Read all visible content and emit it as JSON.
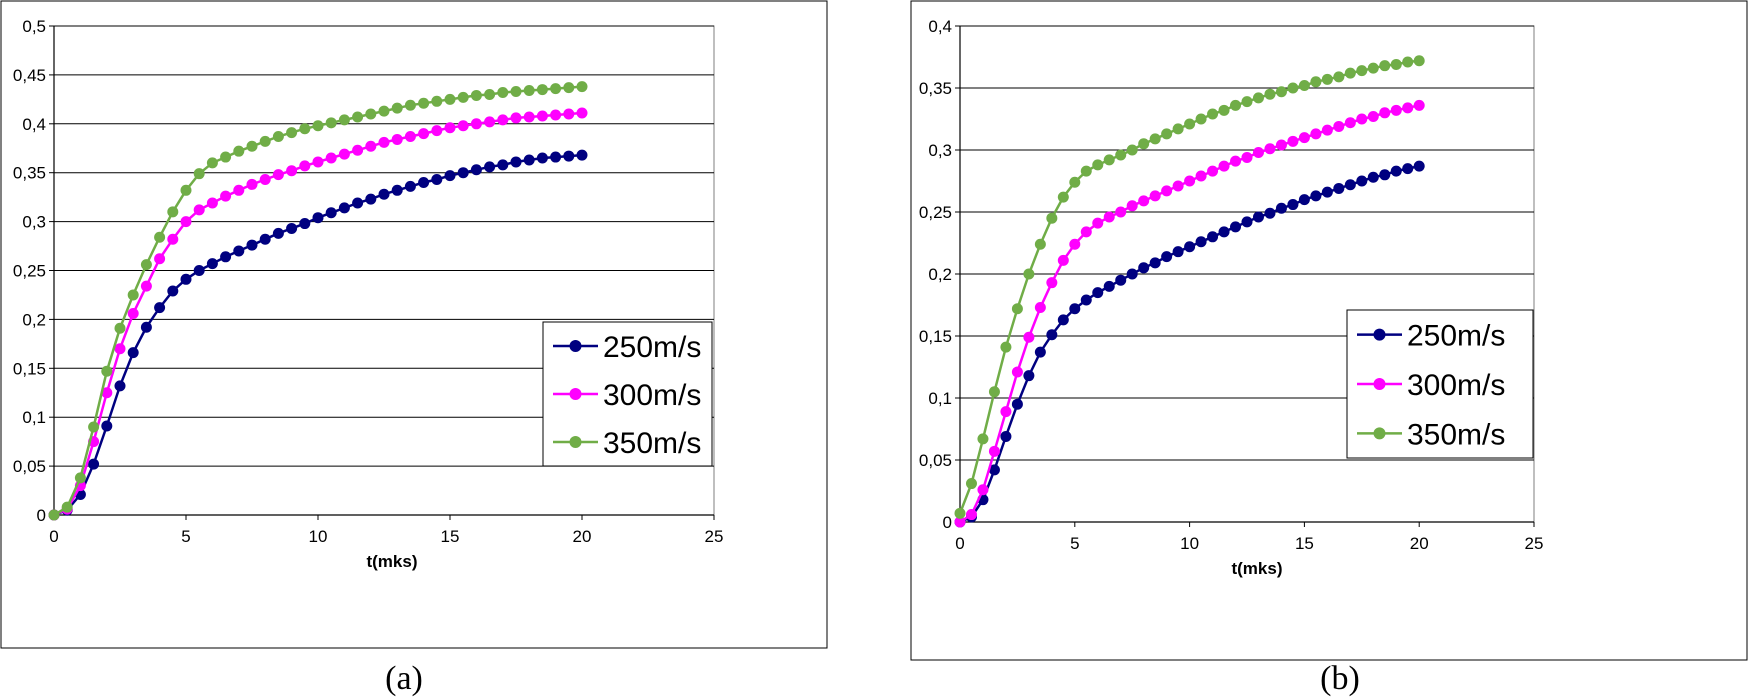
{
  "chart_data": [
    {
      "type": "line",
      "caption": "(a)",
      "title": "",
      "xlabel": "t(mks)",
      "ylabel": "",
      "xlim": [
        0,
        25
      ],
      "ylim": [
        0,
        0.5
      ],
      "x_ticks": [
        "0",
        "5",
        "10",
        "15",
        "20",
        "25"
      ],
      "y_ticks": [
        "0",
        "0,05",
        "0,1",
        "0,15",
        "0,2",
        "0,25",
        "0,3",
        "0,35",
        "0,4",
        "0,45",
        "0,5"
      ],
      "grid": "horizontal",
      "legend_position": "bottom-right",
      "x": [
        0,
        0.5,
        1,
        1.5,
        2,
        2.5,
        3,
        3.5,
        4,
        4.5,
        5,
        5.5,
        6,
        6.5,
        7,
        7.5,
        8,
        8.5,
        9,
        9.5,
        10,
        10.5,
        11,
        11.5,
        12,
        12.5,
        13,
        13.5,
        14,
        14.5,
        15,
        15.5,
        16,
        16.5,
        17,
        17.5,
        18,
        18.5,
        19,
        19.5,
        20
      ],
      "series": [
        {
          "name": "250m/s",
          "color": "#000080",
          "values": [
            0,
            0.005,
            0.021,
            0.052,
            0.091,
            0.132,
            0.166,
            0.192,
            0.212,
            0.229,
            0.241,
            0.25,
            0.257,
            0.264,
            0.27,
            0.276,
            0.282,
            0.288,
            0.293,
            0.298,
            0.304,
            0.309,
            0.314,
            0.319,
            0.323,
            0.328,
            0.332,
            0.336,
            0.34,
            0.343,
            0.347,
            0.35,
            0.353,
            0.356,
            0.358,
            0.361,
            0.363,
            0.365,
            0.366,
            0.367,
            0.368
          ]
        },
        {
          "name": "300m/s",
          "color": "#FF00FF",
          "values": [
            0,
            0.006,
            0.03,
            0.075,
            0.125,
            0.17,
            0.206,
            0.234,
            0.262,
            0.282,
            0.3,
            0.312,
            0.319,
            0.326,
            0.332,
            0.338,
            0.343,
            0.348,
            0.352,
            0.357,
            0.361,
            0.365,
            0.369,
            0.373,
            0.377,
            0.381,
            0.384,
            0.387,
            0.39,
            0.393,
            0.396,
            0.398,
            0.4,
            0.402,
            0.404,
            0.406,
            0.407,
            0.408,
            0.409,
            0.41,
            0.411
          ]
        },
        {
          "name": "350m/s",
          "color": "#70AD47",
          "values": [
            0,
            0.008,
            0.038,
            0.09,
            0.147,
            0.191,
            0.225,
            0.256,
            0.284,
            0.31,
            0.332,
            0.349,
            0.36,
            0.366,
            0.372,
            0.377,
            0.382,
            0.387,
            0.391,
            0.395,
            0.398,
            0.401,
            0.404,
            0.407,
            0.41,
            0.413,
            0.416,
            0.419,
            0.421,
            0.423,
            0.425,
            0.427,
            0.429,
            0.43,
            0.432,
            0.433,
            0.434,
            0.435,
            0.436,
            0.437,
            0.438
          ]
        }
      ]
    },
    {
      "type": "line",
      "caption": "(b)",
      "title": "",
      "xlabel": "t(mks)",
      "ylabel": "",
      "xlim": [
        0,
        25
      ],
      "ylim": [
        0,
        0.4
      ],
      "x_ticks": [
        "0",
        "5",
        "10",
        "15",
        "20",
        "25"
      ],
      "y_ticks": [
        "0",
        "0,05",
        "0,1",
        "0,15",
        "0,2",
        "0,25",
        "0,3",
        "0,35",
        "0,4"
      ],
      "grid": "horizontal",
      "legend_position": "bottom-right",
      "x": [
        0,
        0.5,
        1,
        1.5,
        2,
        2.5,
        3,
        3.5,
        4,
        4.5,
        5,
        5.5,
        6,
        6.5,
        7,
        7.5,
        8,
        8.5,
        9,
        9.5,
        10,
        10.5,
        11,
        11.5,
        12,
        12.5,
        13,
        13.5,
        14,
        14.5,
        15,
        15.5,
        16,
        16.5,
        17,
        17.5,
        18,
        18.5,
        19,
        19.5,
        20
      ],
      "series": [
        {
          "name": "250m/s",
          "color": "#000080",
          "values": [
            0,
            0.004,
            0.018,
            0.042,
            0.069,
            0.095,
            0.118,
            0.137,
            0.151,
            0.163,
            0.172,
            0.179,
            0.185,
            0.19,
            0.195,
            0.2,
            0.205,
            0.209,
            0.214,
            0.218,
            0.222,
            0.226,
            0.23,
            0.234,
            0.238,
            0.242,
            0.246,
            0.249,
            0.253,
            0.256,
            0.26,
            0.263,
            0.266,
            0.269,
            0.272,
            0.275,
            0.278,
            0.28,
            0.283,
            0.285,
            0.287
          ]
        },
        {
          "name": "300m/s",
          "color": "#FF00FF",
          "values": [
            0,
            0.006,
            0.026,
            0.057,
            0.089,
            0.121,
            0.149,
            0.173,
            0.193,
            0.211,
            0.224,
            0.234,
            0.241,
            0.246,
            0.25,
            0.255,
            0.259,
            0.263,
            0.267,
            0.271,
            0.275,
            0.279,
            0.283,
            0.287,
            0.291,
            0.294,
            0.298,
            0.301,
            0.304,
            0.307,
            0.31,
            0.313,
            0.316,
            0.319,
            0.322,
            0.325,
            0.327,
            0.33,
            0.332,
            0.334,
            0.336
          ]
        },
        {
          "name": "350m/s",
          "color": "#70AD47",
          "values": [
            0.007,
            0.031,
            0.067,
            0.105,
            0.141,
            0.172,
            0.2,
            0.224,
            0.245,
            0.262,
            0.274,
            0.283,
            0.288,
            0.292,
            0.296,
            0.3,
            0.305,
            0.309,
            0.313,
            0.317,
            0.321,
            0.325,
            0.329,
            0.332,
            0.336,
            0.339,
            0.342,
            0.345,
            0.347,
            0.35,
            0.352,
            0.355,
            0.357,
            0.359,
            0.362,
            0.364,
            0.366,
            0.368,
            0.369,
            0.371,
            0.372
          ]
        }
      ]
    }
  ]
}
